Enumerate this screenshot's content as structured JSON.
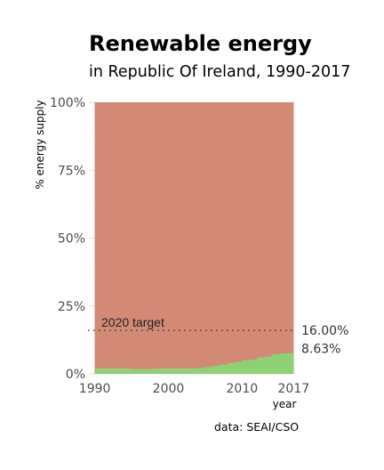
{
  "chart_data": {
    "type": "area",
    "title": "Renewable energy",
    "subtitle": "in Republic Of Ireland, 1990-2017",
    "xlabel": "year",
    "ylabel": "% energy supply",
    "caption": "data: SEAI/CSO",
    "x": [
      1990,
      1991,
      1992,
      1993,
      1994,
      1995,
      1996,
      1997,
      1998,
      1999,
      2000,
      2001,
      2002,
      2003,
      2004,
      2005,
      2006,
      2007,
      2008,
      2009,
      2010,
      2011,
      2012,
      2013,
      2014,
      2015,
      2016,
      2017
    ],
    "series": [
      {
        "name": "",
        "color": "#8dd174",
        "values": [
          2.0,
          2.0,
          2.0,
          2.0,
          2.0,
          1.8,
          1.8,
          1.8,
          2.0,
          2.0,
          2.0,
          2.0,
          2.0,
          2.0,
          2.2,
          2.6,
          3.0,
          3.4,
          4.0,
          4.4,
          5.0,
          5.2,
          6.0,
          6.3,
          7.2,
          7.5,
          7.6,
          8.63
        ]
      },
      {
        "name": "",
        "color": "#d28a76",
        "values_fill_to": 100
      }
    ],
    "xlim": [
      1989.2,
      2017.2
    ],
    "ylim": [
      0,
      100
    ],
    "x_ticks": [
      1990,
      2000,
      2010,
      2017
    ],
    "x_tick_labels": [
      "1990",
      "2000",
      "2010",
      "2017"
    ],
    "y_ticks": [
      0,
      25,
      50,
      75,
      100
    ],
    "y_tick_labels": [
      "0%",
      "25%",
      "50%",
      "75%",
      "100%"
    ],
    "target": {
      "value": 16,
      "label": "2020 target",
      "value_label": "16.00%"
    },
    "latest_value_label": "8.63%",
    "grid": true
  }
}
